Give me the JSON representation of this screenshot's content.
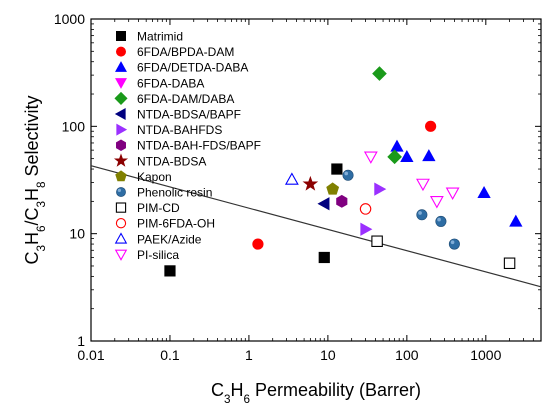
{
  "chart_data": {
    "type": "scatter",
    "x_scale": "log",
    "y_scale": "log",
    "xlim": [
      0.01,
      5000
    ],
    "ylim": [
      1,
      1000
    ],
    "x_ticks": [
      0.01,
      0.1,
      1,
      10,
      100,
      1000
    ],
    "x_tick_labels": [
      "0.01",
      "0.1",
      "1",
      "10",
      "100",
      "1000"
    ],
    "y_ticks": [
      1,
      10,
      100,
      1000
    ],
    "y_tick_labels": [
      "1",
      "10",
      "100",
      "1000"
    ],
    "xlabel": {
      "parts": [
        {
          "t": "C"
        },
        {
          "t": "3",
          "sub": true
        },
        {
          "t": "H"
        },
        {
          "t": "6",
          "sub": true
        },
        {
          "t": " Permeability (Barrer)"
        }
      ]
    },
    "ylabel": {
      "parts": [
        {
          "t": "C"
        },
        {
          "t": "3",
          "sub": true
        },
        {
          "t": "H"
        },
        {
          "t": "6",
          "sub": true
        },
        {
          "t": "/C"
        },
        {
          "t": "3",
          "sub": true
        },
        {
          "t": "H"
        },
        {
          "t": "8",
          "sub": true
        },
        {
          "t": " Selectivity"
        }
      ]
    },
    "legend_position": "top-left",
    "grid": false,
    "upper_bound_line": {
      "points": [
        [
          0.01,
          43
        ],
        [
          5000,
          3.2
        ]
      ],
      "color": "#333333"
    },
    "series": [
      {
        "name": "Matrimid",
        "marker": "square",
        "color": "#000000",
        "filled": true,
        "points": [
          [
            0.1,
            4.5
          ],
          [
            9,
            6
          ],
          [
            13,
            40
          ]
        ]
      },
      {
        "name": "6FDA/BPDA-DAM",
        "marker": "circle",
        "color": "#ff0000",
        "filled": true,
        "points": [
          [
            1.3,
            8
          ],
          [
            200,
            100
          ]
        ]
      },
      {
        "name": "6FDA/DETDA-DABA",
        "marker": "triangle-up",
        "color": "#0000ff",
        "filled": true,
        "points": [
          [
            75,
            65
          ],
          [
            100,
            52
          ],
          [
            190,
            53
          ],
          [
            950,
            24
          ],
          [
            2400,
            13
          ]
        ]
      },
      {
        "name": "6FDA-DABA",
        "marker": "triangle-down",
        "color": "#ff00ff",
        "filled": true,
        "points": []
      },
      {
        "name": "6FDA-DAM/DABA",
        "marker": "diamond",
        "color": "#1a9a1a",
        "filled": true,
        "points": [
          [
            45,
            310
          ],
          [
            70,
            52
          ]
        ]
      },
      {
        "name": "NTDA-BDSA/BAPF",
        "marker": "triangle-left",
        "color": "#00007f",
        "filled": true,
        "points": [
          [
            9,
            19
          ]
        ]
      },
      {
        "name": "NTDA-BAHFDS",
        "marker": "triangle-right",
        "color": "#9b30ff",
        "filled": true,
        "points": [
          [
            30,
            11
          ],
          [
            45,
            26
          ]
        ]
      },
      {
        "name": "NTDA-BAH-FDS/BAPF",
        "marker": "hexagon",
        "color": "#800080",
        "filled": true,
        "points": [
          [
            15,
            20
          ]
        ]
      },
      {
        "name": "NTDA-BDSA",
        "marker": "star",
        "color": "#8b0000",
        "filled": true,
        "points": [
          [
            6,
            29
          ]
        ]
      },
      {
        "name": "Kapon",
        "marker": "pentagon",
        "color": "#808000",
        "filled": true,
        "points": [
          [
            11.5,
            26
          ]
        ]
      },
      {
        "name": "Phenolic resin",
        "marker": "sphere",
        "color": "#2e6da4",
        "filled": true,
        "points": [
          [
            18,
            35
          ],
          [
            155,
            15
          ],
          [
            270,
            13
          ],
          [
            400,
            8
          ]
        ]
      },
      {
        "name": "PIM-CD",
        "marker": "square",
        "color": "#000000",
        "filled": false,
        "points": [
          [
            42,
            8.5
          ],
          [
            2000,
            5.3
          ]
        ]
      },
      {
        "name": "PIM-6FDA-OH",
        "marker": "circle",
        "color": "#ff0000",
        "filled": false,
        "points": [
          [
            30,
            17
          ]
        ]
      },
      {
        "name": "PAEK/Azide",
        "marker": "triangle-up",
        "color": "#0000ff",
        "filled": false,
        "points": [
          [
            3.5,
            32
          ]
        ]
      },
      {
        "name": "PI-silica",
        "marker": "triangle-down",
        "color": "#ff00ff",
        "filled": false,
        "points": [
          [
            35,
            52
          ],
          [
            160,
            29
          ],
          [
            240,
            20
          ],
          [
            380,
            24
          ]
        ]
      }
    ]
  }
}
